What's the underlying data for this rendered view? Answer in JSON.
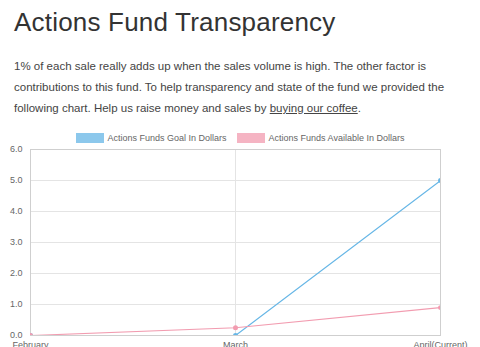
{
  "title": "Actions Fund Transparency",
  "subtitle": [
    {
      "text": "1% of each sale really adds up when the sales volume is high. The other factor is contributions to this fund. To help transparency and state of the fund we provided the following chart. Help us raise money and sales by "
    },
    {
      "text": "buying our coffee",
      "link": true
    },
    {
      "text": "."
    }
  ],
  "chart_data": {
    "type": "line",
    "categories": [
      "February",
      "March",
      "April(Current)"
    ],
    "series": [
      {
        "name": "Actions Funds Goal In Dollars",
        "color": "#66b6e6",
        "marker": "circle",
        "values": [
          0,
          0,
          5
        ]
      },
      {
        "name": "Actions Funds Available In Dollars",
        "color": "#f29cb0",
        "marker": "circle",
        "values": [
          0,
          0.25,
          0.9
        ]
      }
    ],
    "ylim": [
      0,
      6
    ],
    "yticks": [
      0,
      1,
      2,
      3,
      4,
      5,
      6
    ],
    "grid": true,
    "legend": "top"
  }
}
